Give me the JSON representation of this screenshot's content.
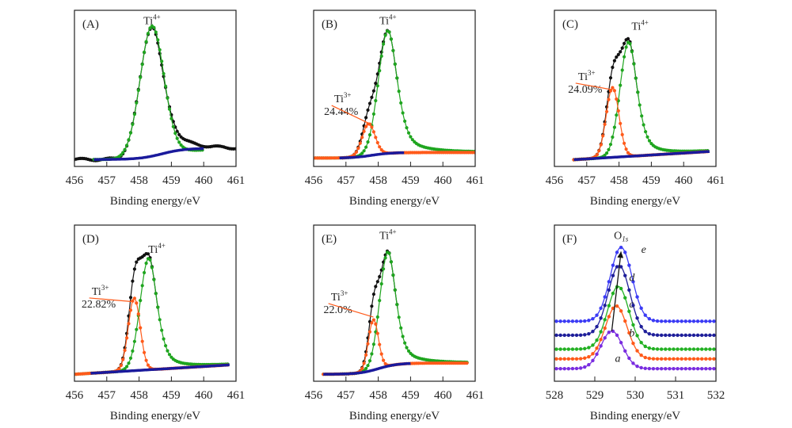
{
  "chart_data": [
    {
      "id": "A",
      "type": "line",
      "panel_label": "(A)",
      "xlabel": "Binding energy/eV",
      "xlim": [
        456,
        461
      ],
      "xticks": [
        "456",
        "457",
        "458",
        "459",
        "460",
        "461"
      ],
      "ylim": [
        0,
        1.12
      ],
      "annotations": [
        {
          "text": "Ti",
          "sup": "4+",
          "x": 458.4,
          "y": 1.02
        }
      ],
      "series": [
        {
          "name": "raw",
          "color": "#111111",
          "style": "noisy-dots",
          "x_range": [
            456,
            461
          ],
          "baseline": [
            0.05,
            0.12
          ],
          "peaks": [
            {
              "center": 458.4,
              "height": 0.94,
              "width": 0.52
            }
          ],
          "tail_from": 458.6
        },
        {
          "name": "Ti4+ fit",
          "color": "#1fa51f",
          "x_range": [
            456.6,
            460.0
          ],
          "baseline": [
            0.05,
            0.12
          ],
          "peaks": [
            {
              "center": 458.4,
              "height": 0.94,
              "width": 0.52
            }
          ]
        },
        {
          "name": "background",
          "color": "#1a1a9c",
          "x_range": [
            456.6,
            460.0
          ],
          "baseline_sigmoid": [
            0.05,
            0.13,
            458.7,
            0.35
          ]
        }
      ]
    },
    {
      "id": "B",
      "type": "line",
      "panel_label": "(B)",
      "xlabel": "Binding energy/eV",
      "xlim": [
        456,
        461
      ],
      "xticks": [
        "456",
        "457",
        "458",
        "459",
        "460",
        "461"
      ],
      "ylim": [
        0,
        1.12
      ],
      "annotations": [
        {
          "text": "Ti",
          "sup": "4+",
          "x": 458.3,
          "y": 1.02
        },
        {
          "text": "Ti",
          "sup": "3+",
          "x": 456.9,
          "y": 0.46,
          "line_to": [
            457.7,
            0.31
          ],
          "value": "24.44%"
        }
      ],
      "ti3_percent": 24.44,
      "series": [
        {
          "name": "raw",
          "color": "#111111",
          "peaks": [
            {
              "center": 458.3,
              "height": 0.88,
              "width": 0.42
            },
            {
              "center": 457.7,
              "height": 0.23,
              "width": 0.28
            }
          ],
          "x_range": [
            456.9,
            458.6
          ]
        },
        {
          "name": "Ti4+ fit",
          "color": "#1fa51f",
          "peaks": [
            {
              "center": 458.3,
              "height": 0.88,
              "width": 0.42
            }
          ],
          "x_range": [
            456,
            461
          ],
          "lorentz": true
        },
        {
          "name": "Ti3+ fit",
          "color": "#ff5a1a",
          "peaks": [
            {
              "center": 457.7,
              "height": 0.23,
              "width": 0.28
            }
          ],
          "x_range": [
            456,
            461
          ]
        },
        {
          "name": "background",
          "color": "#1a1a9c",
          "x_range": [
            456.8,
            458.8
          ],
          "baseline_sigmoid": [
            0.06,
            0.1,
            457.8,
            0.3
          ]
        }
      ]
    },
    {
      "id": "C",
      "type": "line",
      "panel_label": "(C)",
      "xlabel": "Binding energy/eV",
      "xlim": [
        456,
        461
      ],
      "xticks": [
        "456",
        "457",
        "458",
        "459",
        "460",
        "461"
      ],
      "ylim": [
        0,
        1.12
      ],
      "annotations": [
        {
          "text": "Ti",
          "sup": "4+",
          "x": 458.65,
          "y": 0.98
        },
        {
          "text": "Ti",
          "sup": "3+",
          "x": 457.0,
          "y": 0.62,
          "line_to": [
            457.8,
            0.55
          ],
          "value": "24.09%"
        }
      ],
      "ti3_percent": 24.09,
      "series": [
        {
          "name": "raw",
          "color": "#111111",
          "peaks": [
            {
              "center": 458.3,
              "height": 0.82,
              "width": 0.38
            },
            {
              "center": 457.8,
              "height": 0.5,
              "width": 0.28
            }
          ],
          "x_range": [
            456.6,
            458.6
          ]
        },
        {
          "name": "Ti4+ fit",
          "color": "#1fa51f",
          "peaks": [
            {
              "center": 458.3,
              "height": 0.82,
              "width": 0.38
            }
          ],
          "x_range": [
            456.6,
            460.8
          ],
          "lorentz": true
        },
        {
          "name": "Ti3+ fit",
          "color": "#ff5a1a",
          "peaks": [
            {
              "center": 457.8,
              "height": 0.5,
              "width": 0.28
            }
          ],
          "x_range": [
            456.6,
            460.8
          ]
        },
        {
          "name": "background",
          "color": "#1a1a9c",
          "x_range": [
            456.6,
            460.8
          ],
          "baseline_linear": [
            0.04,
            0.11
          ]
        }
      ]
    },
    {
      "id": "D",
      "type": "line",
      "panel_label": "(D)",
      "xlabel": "Binding energy/eV",
      "xlim": [
        456,
        461
      ],
      "xticks": [
        "456",
        "457",
        "458",
        "459",
        "460",
        "461"
      ],
      "ylim": [
        0,
        1.12
      ],
      "annotations": [
        {
          "text": "Ti",
          "sup": "4+",
          "x": 458.55,
          "y": 0.92
        },
        {
          "text": "Ti",
          "sup": "3+",
          "x": 456.8,
          "y": 0.62,
          "line_to": [
            457.85,
            0.57
          ],
          "value": "22.82%"
        }
      ],
      "ti3_percent": 22.82,
      "series": [
        {
          "name": "raw",
          "color": "#111111",
          "peaks": [
            {
              "center": 458.3,
              "height": 0.8,
              "width": 0.38
            },
            {
              "center": 457.85,
              "height": 0.52,
              "width": 0.26
            }
          ],
          "x_range": [
            456.9,
            458.6
          ]
        },
        {
          "name": "Ti4+ fit",
          "color": "#1fa51f",
          "peaks": [
            {
              "center": 458.3,
              "height": 0.8,
              "width": 0.38
            }
          ],
          "x_range": [
            456,
            460.8
          ],
          "lorentz": true
        },
        {
          "name": "Ti3+ fit",
          "color": "#ff5a1a",
          "peaks": [
            {
              "center": 457.85,
              "height": 0.52,
              "width": 0.26
            }
          ],
          "x_range": [
            456,
            460.8
          ]
        },
        {
          "name": "background",
          "color": "#1a1a9c",
          "x_range": [
            456.5,
            460.8
          ],
          "baseline_linear": [
            0.05,
            0.12
          ]
        }
      ]
    },
    {
      "id": "E",
      "type": "line",
      "panel_label": "(E)",
      "xlabel": "Binding energy/eV",
      "xlim": [
        456,
        461
      ],
      "xticks": [
        "456",
        "457",
        "458",
        "459",
        "460",
        "461"
      ],
      "ylim": [
        0,
        1.12
      ],
      "annotations": [
        {
          "text": "Ti",
          "sup": "4+",
          "x": 458.3,
          "y": 1.02
        },
        {
          "text": "Ti",
          "sup": "3+",
          "x": 456.8,
          "y": 0.58,
          "line_to": [
            457.85,
            0.46
          ],
          "value": "22.0%"
        }
      ],
      "ti3_percent": 22.0,
      "series": [
        {
          "name": "raw",
          "color": "#111111",
          "peaks": [
            {
              "center": 458.3,
              "height": 0.82,
              "width": 0.36
            },
            {
              "center": 457.85,
              "height": 0.36,
              "width": 0.22
            }
          ],
          "x_range": [
            456.9,
            458.6
          ]
        },
        {
          "name": "Ti4+ fit",
          "color": "#1fa51f",
          "peaks": [
            {
              "center": 458.3,
              "height": 0.82,
              "width": 0.36
            }
          ],
          "x_range": [
            456.3,
            460.8
          ],
          "lorentz": true
        },
        {
          "name": "Ti3+ fit",
          "color": "#ff5a1a",
          "peaks": [
            {
              "center": 457.85,
              "height": 0.36,
              "width": 0.22
            }
          ],
          "x_range": [
            456.3,
            460.8
          ]
        },
        {
          "name": "background",
          "color": "#1a1a9c",
          "x_range": [
            456.3,
            459.0
          ],
          "baseline_sigmoid": [
            0.05,
            0.13,
            458.0,
            0.3
          ]
        }
      ]
    },
    {
      "id": "F",
      "type": "line",
      "panel_label": "(F)",
      "xlabel": "Binding energy/eV",
      "xlim": [
        528,
        532
      ],
      "xticks": [
        "528",
        "529",
        "530",
        "531",
        "532"
      ],
      "ylim": [
        0,
        1.12
      ],
      "annotations": [
        {
          "text": "O",
          "sub": "1s",
          "x": 529.65,
          "y": 1.02
        },
        {
          "arrow_from": [
            529.42,
            0.36
          ],
          "arrow_to": [
            529.65,
            0.93
          ]
        }
      ],
      "series": [
        {
          "name": "a",
          "label": "a",
          "color": "#7a2de0",
          "offset": 0.09,
          "peaks": [
            {
              "center": 529.42,
              "height": 0.27,
              "width": 0.38
            }
          ],
          "label_at": [
            529.5,
            0.14
          ]
        },
        {
          "name": "b",
          "label": "b",
          "color": "#ff5a1a",
          "offset": 0.16,
          "peaks": [
            {
              "center": 529.53,
              "height": 0.38,
              "width": 0.38
            }
          ],
          "label_at": [
            529.85,
            0.32
          ]
        },
        {
          "name": "c",
          "label": "c",
          "color": "#22b022",
          "offset": 0.23,
          "peaks": [
            {
              "center": 529.58,
              "height": 0.45,
              "width": 0.38
            }
          ],
          "label_at": [
            529.85,
            0.53
          ]
        },
        {
          "name": "d",
          "label": "d",
          "color": "#1f1f9a",
          "offset": 0.33,
          "peaks": [
            {
              "center": 529.6,
              "height": 0.5,
              "width": 0.38
            }
          ],
          "label_at": [
            529.85,
            0.72
          ]
        },
        {
          "name": "e",
          "label": "e",
          "color": "#3b3bf5",
          "offset": 0.43,
          "peaks": [
            {
              "center": 529.65,
              "height": 0.53,
              "width": 0.38
            }
          ],
          "label_at": [
            530.15,
            0.92
          ]
        }
      ]
    }
  ]
}
